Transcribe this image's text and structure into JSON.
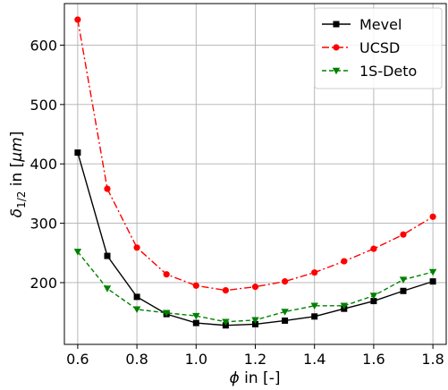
{
  "chart_data": {
    "type": "line",
    "x": [
      0.6,
      0.7,
      0.8,
      0.9,
      1.0,
      1.1,
      1.2,
      1.3,
      1.4,
      1.5,
      1.6,
      1.7,
      1.8
    ],
    "series": [
      {
        "name": "Mevel",
        "color": "#000000",
        "marker": "square",
        "linestyle": "solid",
        "values": [
          419,
          245,
          176,
          147,
          132,
          128,
          130,
          136,
          143,
          156,
          169,
          186,
          202
        ]
      },
      {
        "name": "UCSD",
        "color": "#ff0000",
        "marker": "circle",
        "linestyle": "dashdot",
        "values": [
          643,
          358,
          259,
          214,
          195,
          187,
          193,
          202,
          217,
          236,
          257,
          281,
          311
        ]
      },
      {
        "name": "1S-Deto",
        "color": "#008000",
        "marker": "triangle-down",
        "linestyle": "dashed",
        "values": [
          252,
          190,
          155,
          149,
          144,
          134,
          137,
          151,
          161,
          161,
          178,
          205,
          218
        ]
      }
    ],
    "xlabel_var": "ϕ",
    "xlabel_rest": " in [-]",
    "ylabel_var": "δ",
    "ylabel_sub": "1/2",
    "ylabel_mid": " in [",
    "ylabel_unit": "μm",
    "ylabel_end": "]",
    "xticks": [
      "0.6",
      "0.8",
      "1.0",
      "1.2",
      "1.4",
      "1.6",
      "1.8"
    ],
    "yticks": [
      "200",
      "300",
      "400",
      "500",
      "600"
    ],
    "xlim": [
      0.555,
      1.845
    ],
    "ylim": [
      96,
      670
    ],
    "grid": true,
    "legend_position": "top-right"
  }
}
